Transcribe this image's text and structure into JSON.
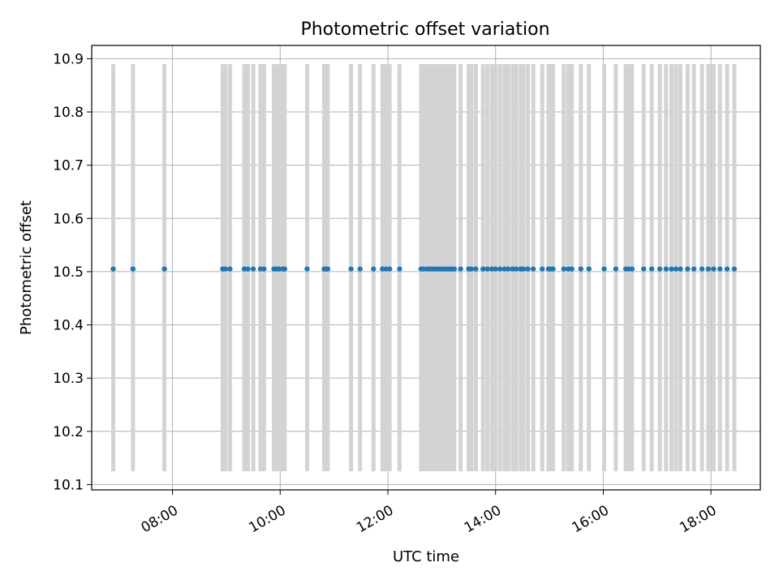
{
  "chart_data": {
    "type": "scatter",
    "title": "Photometric offset variation",
    "xlabel": "UTC time",
    "ylabel": "Photometric offset",
    "x_axis_type": "time",
    "xlim": [
      "06:30",
      "18:55"
    ],
    "ylim": [
      10.09,
      10.925
    ],
    "yticks": [
      10.1,
      10.2,
      10.3,
      10.4,
      10.5,
      10.6,
      10.7,
      10.8,
      10.9
    ],
    "xticks": [
      "08:00",
      "10:00",
      "12:00",
      "14:00",
      "16:00",
      "18:00"
    ],
    "grid": true,
    "colors": {
      "points": "#1f77b4",
      "errorbars": "#d3d3d3",
      "grid": "#b0b0b0"
    },
    "errorbar": {
      "lower": 10.125,
      "upper": 10.89
    },
    "series": [
      {
        "y_value": 10.505,
        "x": [
          "06:54",
          "07:16",
          "07:51",
          "08:56",
          "08:59",
          "09:04",
          "09:20",
          "09:24",
          "09:30",
          "09:38",
          "09:42",
          "09:53",
          "09:56",
          "09:59",
          "10:03",
          "10:05",
          "10:30",
          "10:49",
          "10:51",
          "10:53",
          "11:19",
          "11:29",
          "11:44",
          "11:54",
          "11:58",
          "12:02",
          "12:13",
          "12:37",
          "12:40",
          "12:44",
          "12:47",
          "12:50",
          "12:53",
          "12:56",
          "12:59",
          "13:02",
          "13:05",
          "13:08",
          "13:11",
          "13:14",
          "13:21",
          "13:30",
          "13:33",
          "13:38",
          "13:46",
          "13:51",
          "13:56",
          "14:00",
          "14:05",
          "14:10",
          "14:14",
          "14:19",
          "14:23",
          "14:28",
          "14:31",
          "14:36",
          "14:42",
          "14:52",
          "14:59",
          "15:01",
          "15:04",
          "15:16",
          "15:21",
          "15:25",
          "15:35",
          "15:44",
          "16:01",
          "16:14",
          "16:25",
          "16:28",
          "16:32",
          "16:45",
          "16:54",
          "17:03",
          "17:10",
          "17:16",
          "17:21",
          "17:26",
          "17:34",
          "17:41",
          "17:50",
          "17:57",
          "18:03",
          "18:10",
          "18:18",
          "18:26"
        ]
      }
    ]
  }
}
